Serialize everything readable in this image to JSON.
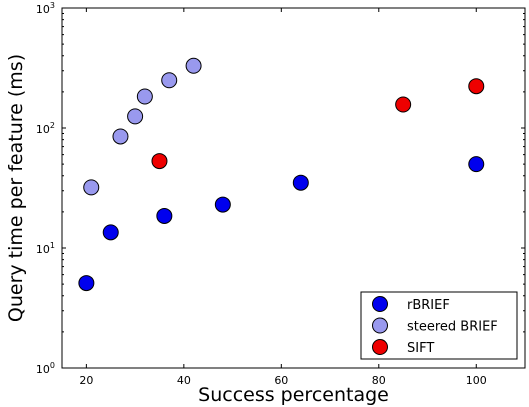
{
  "chart_data": {
    "type": "scatter",
    "title": "",
    "xlabel": "Success percentage",
    "ylabel": "Query time per feature (ms)",
    "xlim": [
      15,
      110
    ],
    "ylim": [
      1,
      1000
    ],
    "yscale": "log",
    "x_ticks": [
      20,
      40,
      60,
      80,
      100
    ],
    "y_ticks": [
      1,
      10,
      100,
      1000
    ],
    "y_tick_labels": [
      {
        "base": "10",
        "exp": "0"
      },
      {
        "base": "10",
        "exp": "1"
      },
      {
        "base": "10",
        "exp": "2"
      },
      {
        "base": "10",
        "exp": "3"
      }
    ],
    "grid": false,
    "legend_position": "lower-right",
    "series": [
      {
        "name": "rBRIEF",
        "color": "#0000ee",
        "points": [
          {
            "x": 20,
            "y": 5.1
          },
          {
            "x": 25,
            "y": 13.5
          },
          {
            "x": 36,
            "y": 18.5
          },
          {
            "x": 48,
            "y": 23
          },
          {
            "x": 64,
            "y": 35
          },
          {
            "x": 100,
            "y": 50
          }
        ]
      },
      {
        "name": "steered BRIEF",
        "color": "#9999ee",
        "points": [
          {
            "x": 21,
            "y": 32
          },
          {
            "x": 27,
            "y": 85
          },
          {
            "x": 30,
            "y": 125
          },
          {
            "x": 32,
            "y": 183
          },
          {
            "x": 37,
            "y": 250
          },
          {
            "x": 42,
            "y": 330
          }
        ]
      },
      {
        "name": "SIFT",
        "color": "#ee0000",
        "points": [
          {
            "x": 35,
            "y": 53
          },
          {
            "x": 85,
            "y": 157
          },
          {
            "x": 100,
            "y": 223
          }
        ]
      }
    ]
  }
}
